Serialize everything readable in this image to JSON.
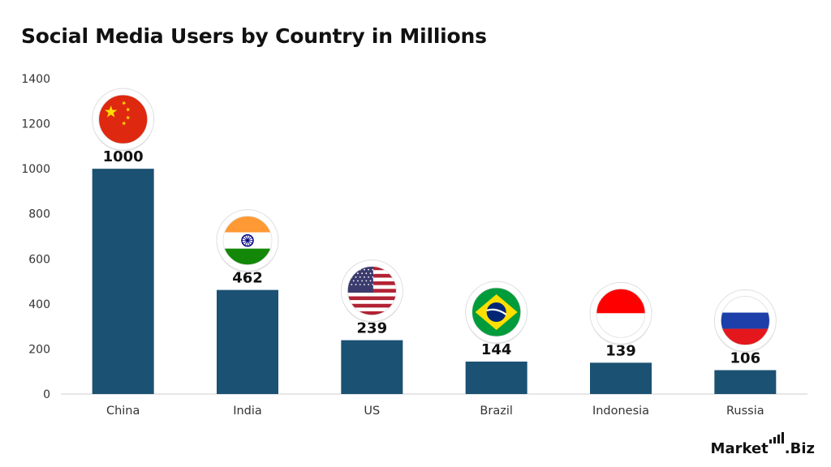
{
  "title": "Social Media Users by Country in Millions",
  "logo": {
    "text_left": "Market",
    "text_right": ".Biz"
  },
  "colors": {
    "bar": "#1b5173",
    "axis": "#cccccc"
  },
  "chart_data": {
    "type": "bar",
    "title": "Social Media Users by Country in Millions",
    "categories": [
      "China",
      "India",
      "US",
      "Brazil",
      "Indonesia",
      "Russia"
    ],
    "values": [
      1000,
      462,
      239,
      144,
      139,
      106
    ],
    "ylim": [
      0,
      1400
    ],
    "yticks": [
      0,
      200,
      400,
      600,
      800,
      1000,
      1200,
      1400
    ],
    "xlabel": "",
    "ylabel": "",
    "grid": false,
    "flags": [
      "china-flag-icon",
      "india-flag-icon",
      "us-flag-icon",
      "brazil-flag-icon",
      "indonesia-flag-icon",
      "russia-flag-icon"
    ]
  }
}
